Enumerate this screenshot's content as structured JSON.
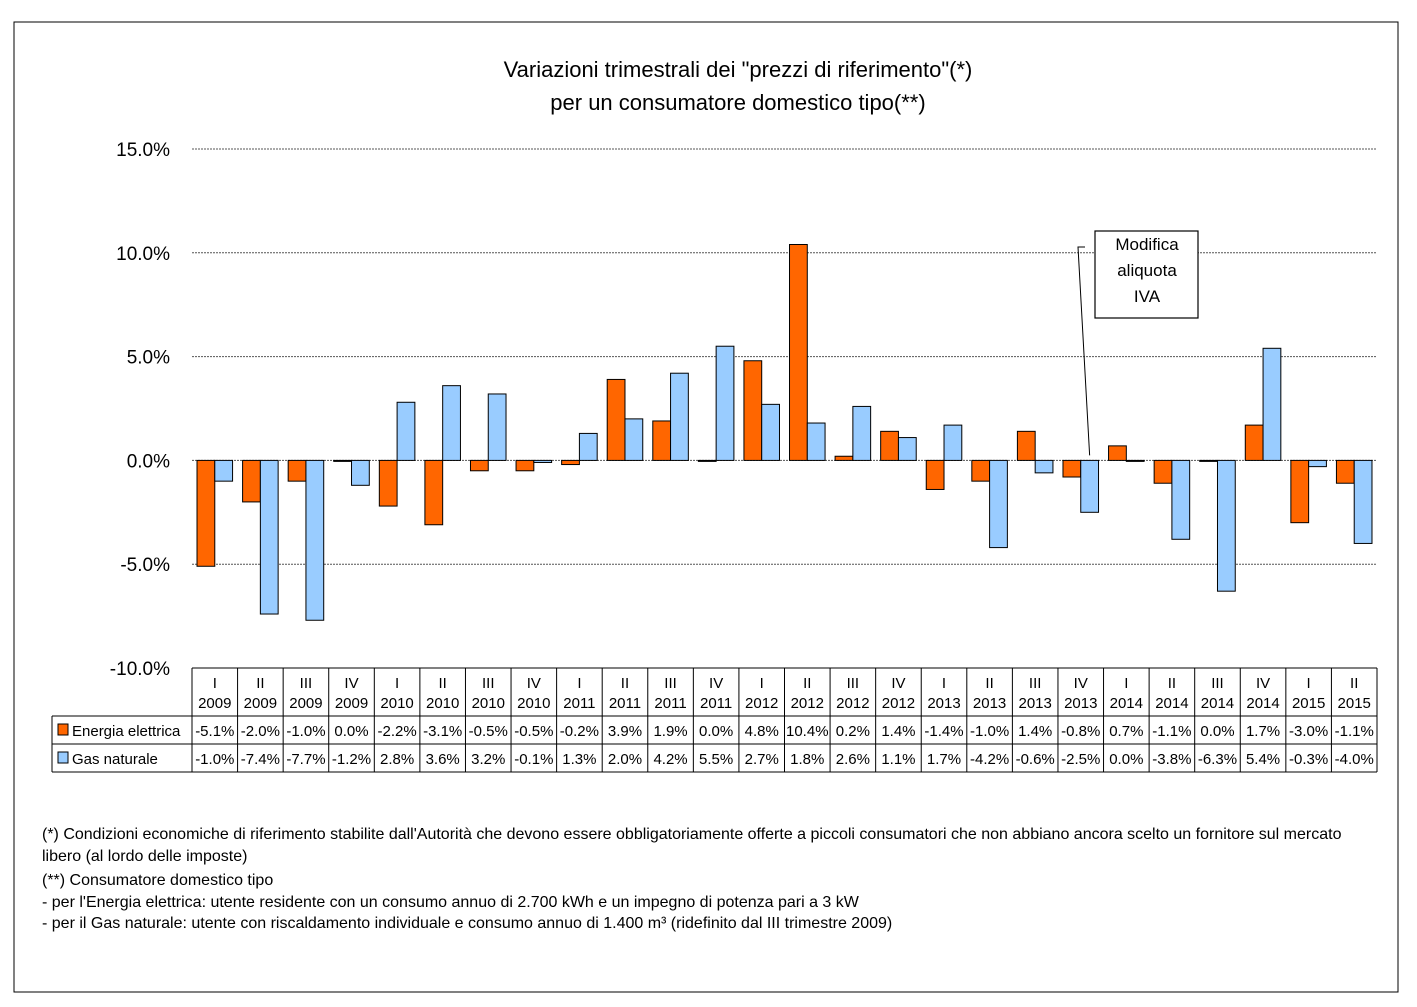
{
  "chart_data": {
    "type": "bar",
    "title": "Variazioni trimestrali dei \"prezzi di riferimento\"(*)",
    "subtitle": "per un consumatore domestico tipo(**)",
    "xlabel": "",
    "ylabel": "",
    "ylim": [
      -10,
      15
    ],
    "yticks": [
      "15.0%",
      "10.0%",
      "5.0%",
      "0.0%",
      "-5.0%",
      "-10.0%"
    ],
    "ytick_values": [
      15,
      10,
      5,
      0,
      -5,
      -10
    ],
    "grid": "horizontal dashed",
    "legend": "data table, left",
    "categories": [
      [
        "I",
        "2009"
      ],
      [
        "II",
        "2009"
      ],
      [
        "III",
        "2009"
      ],
      [
        "IV",
        "2009"
      ],
      [
        "I",
        "2010"
      ],
      [
        "II",
        "2010"
      ],
      [
        "III",
        "2010"
      ],
      [
        "IV",
        "2010"
      ],
      [
        "I",
        "2011"
      ],
      [
        "II",
        "2011"
      ],
      [
        "III",
        "2011"
      ],
      [
        "IV",
        "2011"
      ],
      [
        "I",
        "2012"
      ],
      [
        "II",
        "2012"
      ],
      [
        "III",
        "2012"
      ],
      [
        "IV",
        "2012"
      ],
      [
        "I",
        "2013"
      ],
      [
        "II",
        "2013"
      ],
      [
        "III",
        "2013"
      ],
      [
        "IV",
        "2013"
      ],
      [
        "I",
        "2014"
      ],
      [
        "II",
        "2014"
      ],
      [
        "III",
        "2014"
      ],
      [
        "IV",
        "2014"
      ],
      [
        "I",
        "2015"
      ],
      [
        "II",
        "2015"
      ]
    ],
    "series": [
      {
        "name": "Energia elettrica",
        "color": "#FF6600",
        "values": [
          -5.1,
          -2.0,
          -1.0,
          0.0,
          -2.2,
          -3.1,
          -0.5,
          -0.5,
          -0.2,
          3.9,
          1.9,
          0.0,
          4.8,
          10.4,
          0.2,
          1.4,
          -1.4,
          -1.0,
          1.4,
          -0.8,
          0.7,
          -1.1,
          0.0,
          1.7,
          -3.0,
          -1.1
        ]
      },
      {
        "name": "Gas naturale",
        "color": "#99CCFF",
        "values": [
          -1.0,
          -7.4,
          -7.7,
          -1.2,
          2.8,
          3.6,
          3.2,
          -0.1,
          1.3,
          2.0,
          4.2,
          5.5,
          2.7,
          1.8,
          2.6,
          1.1,
          1.7,
          -4.2,
          -0.6,
          -2.5,
          0.0,
          -3.8,
          -6.3,
          5.4,
          -0.3,
          -4.0
        ]
      }
    ],
    "annotation": {
      "lines": [
        "Modifica",
        "aliquota",
        "IVA"
      ],
      "category_index": 19
    }
  },
  "notes": {
    "line1": "(*) Condizioni economiche di riferimento stabilite dall'Autorità che devono essere obbligatoriamente offerte a piccoli consumatori che non abbiano ancora scelto un fornitore sul mercato libero (al lordo delle imposte)",
    "line2": "(**) Consumatore domestico tipo",
    "line3": "- per l'Energia elettrica: utente residente con un consumo annuo di 2.700 kWh e un impegno di potenza pari a 3 kW",
    "line4": "- per il Gas naturale: utente con riscaldamento individuale e consumo annuo di 1.400 m³ (ridefinito dal III trimestre 2009)"
  }
}
